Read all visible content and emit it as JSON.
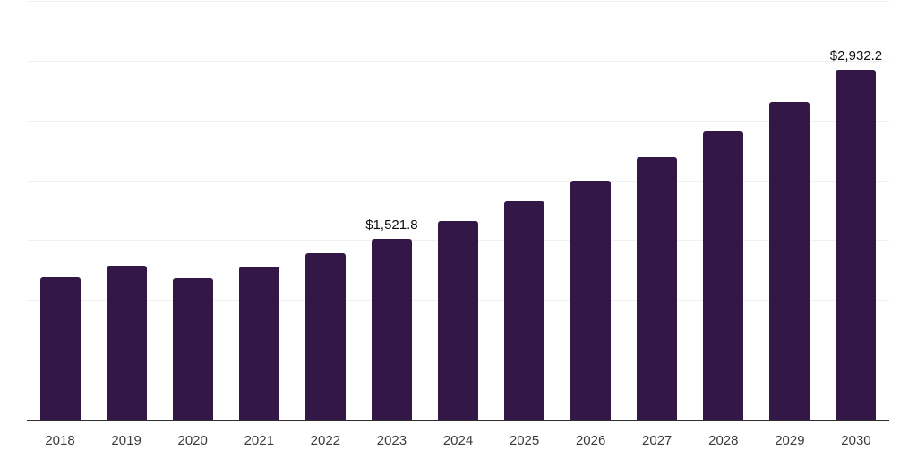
{
  "chart_data": {
    "type": "bar",
    "title": "",
    "xlabel": "",
    "ylabel": "",
    "categories": [
      "2018",
      "2019",
      "2020",
      "2021",
      "2022",
      "2023",
      "2024",
      "2025",
      "2026",
      "2027",
      "2028",
      "2029",
      "2030"
    ],
    "values": [
      1199,
      1293,
      1187,
      1286,
      1401,
      1521.8,
      1669,
      1836,
      2007,
      2196,
      2413,
      2664,
      2932.2
    ],
    "data_labels": [
      {
        "category": "2023",
        "text": "$1,521.8"
      },
      {
        "category": "2030",
        "text": "$2,932.2"
      }
    ],
    "ylim": [
      0,
      3500
    ],
    "gridline_step": 500,
    "grid": true,
    "legend": false,
    "y_tick_labels_visible": false,
    "bar_color": "#331747",
    "axis_line_color": "#2d2d2d",
    "gridline_color": "#f1f1f1",
    "value_label_color": "#0f0f0f",
    "tick_label_color": "#3b3b3b",
    "background_color": "#ffffff"
  }
}
